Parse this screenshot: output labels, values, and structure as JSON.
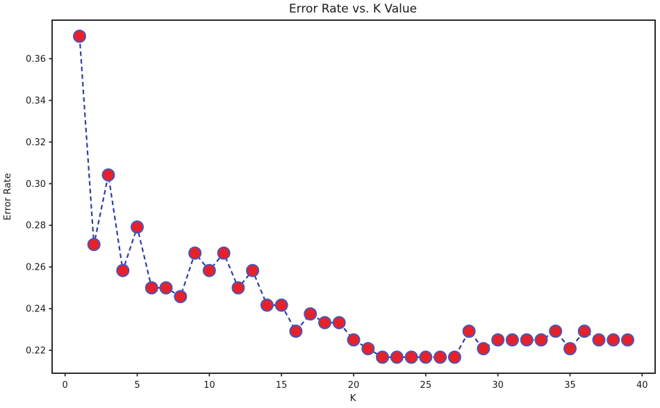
{
  "chart_data": {
    "type": "line",
    "title": "Error Rate vs. K Value",
    "xlabel": "K",
    "ylabel": "Error Rate",
    "x": [
      1,
      2,
      3,
      4,
      5,
      6,
      7,
      8,
      9,
      10,
      11,
      12,
      13,
      14,
      15,
      16,
      17,
      18,
      19,
      20,
      21,
      22,
      23,
      24,
      25,
      26,
      27,
      28,
      29,
      30,
      31,
      32,
      33,
      34,
      35,
      36,
      37,
      38,
      39
    ],
    "y": [
      0.3708,
      0.2708,
      0.3042,
      0.2583,
      0.2792,
      0.25,
      0.25,
      0.2458,
      0.2667,
      0.2583,
      0.2667,
      0.25,
      0.2583,
      0.2417,
      0.2417,
      0.2292,
      0.2375,
      0.2333,
      0.2333,
      0.225,
      0.2208,
      0.2167,
      0.2167,
      0.2167,
      0.2167,
      0.2167,
      0.2167,
      0.2292,
      0.2208,
      0.225,
      0.225,
      0.225,
      0.225,
      0.2292,
      0.2208,
      0.2292,
      0.225,
      0.225,
      0.225
    ],
    "xlim": [
      -0.9,
      40.9
    ],
    "ylim": [
      0.209,
      0.3785
    ],
    "xticks": [
      0,
      5,
      10,
      15,
      20,
      25,
      30,
      35,
      40
    ],
    "xtick_labels": [
      "0",
      "5",
      "10",
      "15",
      "20",
      "25",
      "30",
      "35",
      "40"
    ],
    "yticks": [
      0.22,
      0.24,
      0.26,
      0.28,
      0.3,
      0.32,
      0.34,
      0.36
    ],
    "ytick_labels": [
      "0.22",
      "0.24",
      "0.26",
      "0.28",
      "0.30",
      "0.32",
      "0.34",
      "0.36"
    ],
    "grid": false,
    "legend_position": "none",
    "line_style": "dashed",
    "marker": "circle",
    "colors": {
      "line": "#2f3da5",
      "marker_fill": "#e62129",
      "marker_edge": "#4a55b8",
      "frame": "#2b2b2b",
      "text": "#1a1a1a"
    }
  }
}
